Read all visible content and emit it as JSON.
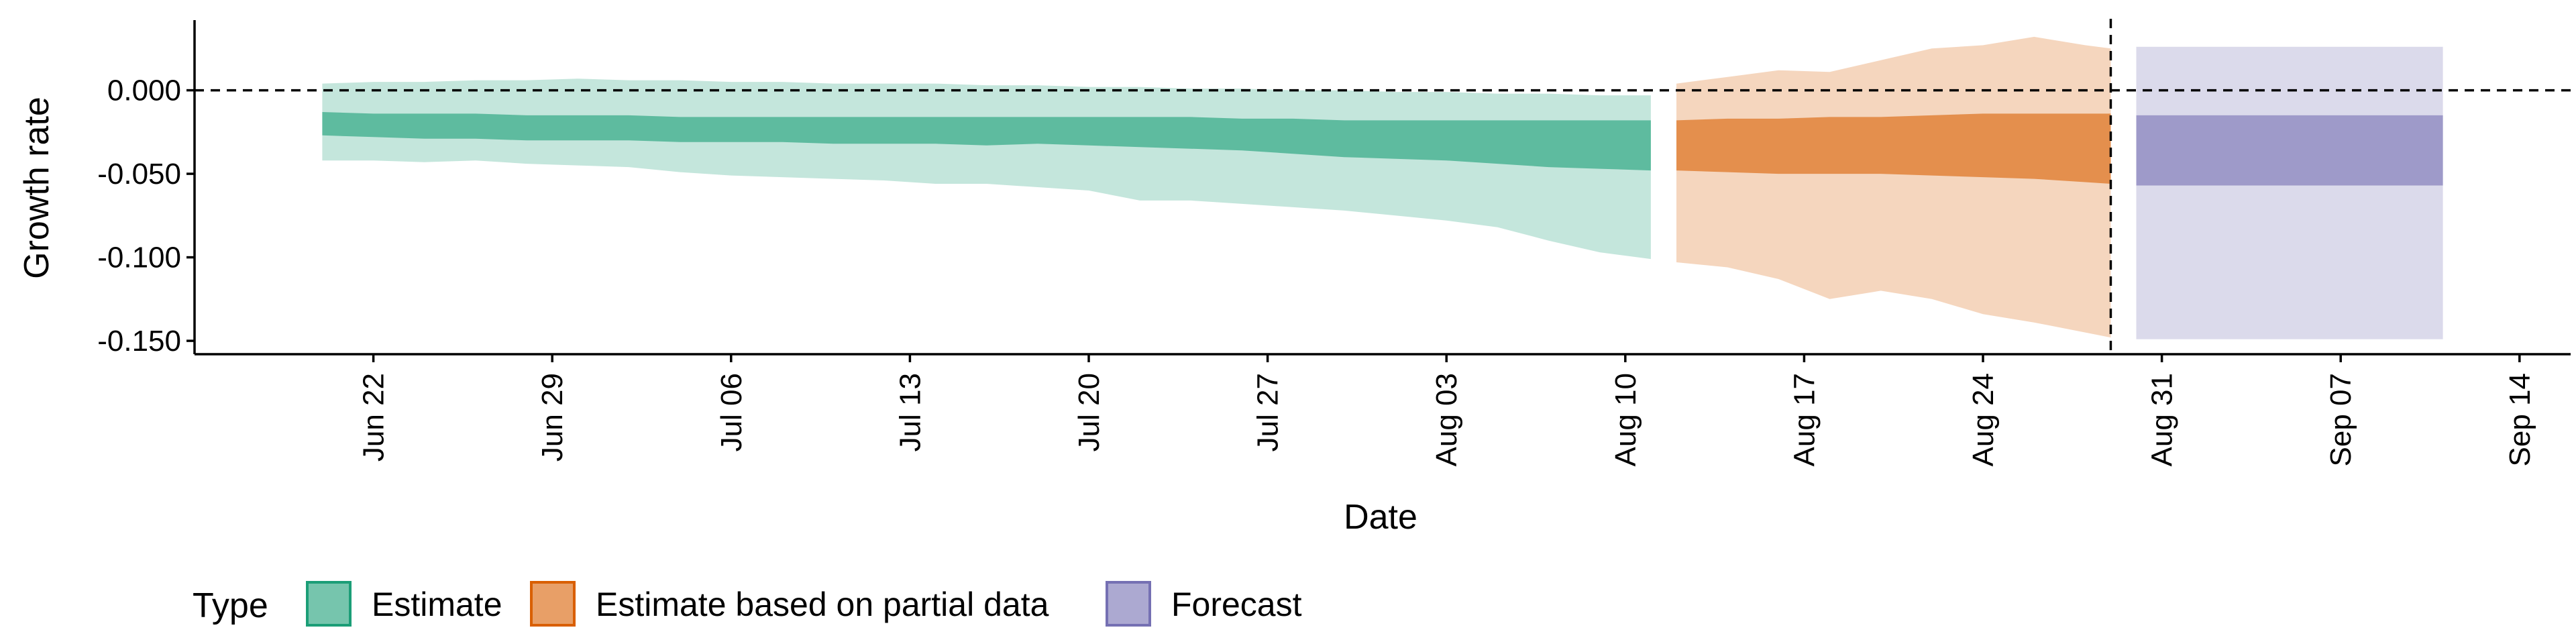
{
  "chart_data": {
    "type": "area",
    "xlabel": "Date",
    "ylabel": "Growth rate",
    "x_ticks": [
      "Jun 22",
      "Jun 29",
      "Jul 06",
      "Jul 13",
      "Jul 20",
      "Jul 27",
      "Aug 03",
      "Aug 10",
      "Aug 17",
      "Aug 24",
      "Aug 31",
      "Sep 07",
      "Sep 14"
    ],
    "y_ticks": [
      "0.000",
      "-0.050",
      "-0.100",
      "-0.150"
    ],
    "x_range": [
      "2020-06-15",
      "2020-09-16"
    ],
    "y_range": [
      -0.158,
      0.042
    ],
    "reference_lines": [
      {
        "axis": "y",
        "value": 0.0,
        "style": "dashed"
      },
      {
        "axis": "x",
        "value": "2020-08-29",
        "style": "dashed"
      }
    ],
    "legend": {
      "title": "Type",
      "position": "bottom-left",
      "entries": [
        "Estimate",
        "Estimate based on partial data",
        "Forecast"
      ]
    },
    "series": [
      {
        "name": "Estimate",
        "color": "#1b9e77",
        "x": [
          "2020-06-20",
          "2020-06-22",
          "2020-06-24",
          "2020-06-26",
          "2020-06-28",
          "2020-06-30",
          "2020-07-02",
          "2020-07-04",
          "2020-07-06",
          "2020-07-08",
          "2020-07-10",
          "2020-07-12",
          "2020-07-14",
          "2020-07-16",
          "2020-07-18",
          "2020-07-20",
          "2020-07-22",
          "2020-07-24",
          "2020-07-26",
          "2020-07-28",
          "2020-07-30",
          "2020-08-01",
          "2020-08-03",
          "2020-08-05",
          "2020-08-07",
          "2020-08-09",
          "2020-08-11"
        ],
        "lower_90": [
          -0.042,
          -0.042,
          -0.043,
          -0.042,
          -0.044,
          -0.045,
          -0.046,
          -0.049,
          -0.051,
          -0.052,
          -0.053,
          -0.054,
          -0.056,
          -0.056,
          -0.058,
          -0.06,
          -0.066,
          -0.066,
          -0.068,
          -0.07,
          -0.072,
          -0.075,
          -0.078,
          -0.082,
          -0.09,
          -0.097,
          -0.101
        ],
        "lower_50": [
          -0.027,
          -0.028,
          -0.029,
          -0.029,
          -0.03,
          -0.03,
          -0.03,
          -0.031,
          -0.031,
          -0.031,
          -0.032,
          -0.032,
          -0.032,
          -0.033,
          -0.032,
          -0.033,
          -0.034,
          -0.035,
          -0.036,
          -0.038,
          -0.04,
          -0.041,
          -0.042,
          -0.044,
          -0.046,
          -0.047,
          -0.048
        ],
        "upper_50": [
          -0.013,
          -0.014,
          -0.014,
          -0.014,
          -0.015,
          -0.015,
          -0.015,
          -0.016,
          -0.016,
          -0.016,
          -0.016,
          -0.016,
          -0.016,
          -0.016,
          -0.016,
          -0.016,
          -0.016,
          -0.016,
          -0.017,
          -0.017,
          -0.018,
          -0.018,
          -0.018,
          -0.018,
          -0.018,
          -0.018,
          -0.018
        ],
        "upper_90": [
          0.004,
          0.005,
          0.005,
          0.006,
          0.006,
          0.007,
          0.006,
          0.006,
          0.005,
          0.005,
          0.004,
          0.004,
          0.004,
          0.003,
          0.003,
          0.002,
          0.002,
          0.001,
          0.001,
          0.0,
          0.0,
          -0.001,
          -0.001,
          -0.002,
          -0.002,
          -0.003,
          -0.003
        ]
      },
      {
        "name": "Estimate based on partial data",
        "color": "#d95f02",
        "x": [
          "2020-08-12",
          "2020-08-14",
          "2020-08-16",
          "2020-08-18",
          "2020-08-20",
          "2020-08-22",
          "2020-08-24",
          "2020-08-26",
          "2020-08-28",
          "2020-08-29"
        ],
        "lower_90": [
          -0.103,
          -0.106,
          -0.113,
          -0.125,
          -0.12,
          -0.125,
          -0.134,
          -0.139,
          -0.145,
          -0.148
        ],
        "lower_50": [
          -0.048,
          -0.049,
          -0.05,
          -0.05,
          -0.05,
          -0.051,
          -0.052,
          -0.053,
          -0.055,
          -0.056
        ],
        "upper_50": [
          -0.018,
          -0.017,
          -0.017,
          -0.016,
          -0.016,
          -0.015,
          -0.014,
          -0.014,
          -0.014,
          -0.014
        ],
        "upper_90": [
          0.004,
          0.008,
          0.012,
          0.011,
          0.018,
          0.025,
          0.027,
          0.032,
          0.027,
          0.025
        ]
      },
      {
        "name": "Forecast",
        "color": "#7570b3",
        "x": [
          "2020-08-30",
          "2020-09-11"
        ],
        "lower_90": [
          -0.149,
          -0.149
        ],
        "lower_50": [
          -0.057,
          -0.057
        ],
        "upper_50": [
          -0.015,
          -0.015
        ],
        "upper_90": [
          0.026,
          0.026
        ]
      }
    ]
  }
}
